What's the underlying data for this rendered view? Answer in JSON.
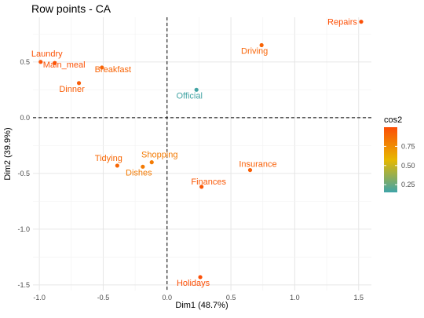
{
  "chart_data": {
    "type": "scatter",
    "title": "Row points - CA",
    "xlabel": "Dim1 (48.7%)",
    "ylabel": "Dim2 (39.9%)",
    "xlim": [
      -1.05,
      1.6
    ],
    "ylim": [
      -1.55,
      0.9
    ],
    "x_ticks": [
      -1.0,
      -0.5,
      0.0,
      0.5,
      1.0,
      1.5
    ],
    "x_tick_labels": [
      "-1.0",
      "-0.5",
      "0.0",
      "0.5",
      "1.0",
      "1.5"
    ],
    "y_ticks": [
      -1.5,
      -1.0,
      -0.5,
      0.0,
      0.5
    ],
    "y_tick_labels": [
      "-1.5",
      "-1.0",
      "-0.5",
      "0.0",
      "0.5"
    ],
    "grid": true,
    "reference_lines": {
      "x": 0,
      "y": 0,
      "style": "dashed"
    },
    "legend": {
      "title": "cos2",
      "placement": "right",
      "ticks": [
        0.25,
        0.5,
        0.75
      ],
      "tick_labels": [
        "0.25",
        "0.50",
        "0.75"
      ],
      "range": [
        0.15,
        1.0
      ],
      "colors": [
        "#3FA4A8",
        "#E7B800",
        "#FC4E07"
      ]
    },
    "points": [
      {
        "label": "Laundry",
        "x": -0.99,
        "y": 0.5,
        "cos2": 0.98
      },
      {
        "label": "Main_meal",
        "x": -0.88,
        "y": 0.49,
        "cos2": 0.98
      },
      {
        "label": "Dinner",
        "x": -0.69,
        "y": 0.31,
        "cos2": 0.94
      },
      {
        "label": "Breakfast",
        "x": -0.51,
        "y": 0.45,
        "cos2": 0.91
      },
      {
        "label": "Tidying",
        "x": -0.39,
        "y": -0.43,
        "cos2": 0.9
      },
      {
        "label": "Dishes",
        "x": -0.19,
        "y": -0.44,
        "cos2": 0.82
      },
      {
        "label": "Shopping",
        "x": -0.12,
        "y": -0.4,
        "cos2": 0.82
      },
      {
        "label": "Official",
        "x": 0.23,
        "y": 0.25,
        "cos2": 0.16
      },
      {
        "label": "Driving",
        "x": 0.74,
        "y": 0.65,
        "cos2": 0.91
      },
      {
        "label": "Finances",
        "x": 0.27,
        "y": -0.62,
        "cos2": 0.96
      },
      {
        "label": "Insurance",
        "x": 0.65,
        "y": -0.47,
        "cos2": 0.93
      },
      {
        "label": "Repairs",
        "x": 1.52,
        "y": 0.86,
        "cos2": 0.99
      },
      {
        "label": "Holidays",
        "x": 0.26,
        "y": -1.43,
        "cos2": 0.99
      }
    ]
  }
}
